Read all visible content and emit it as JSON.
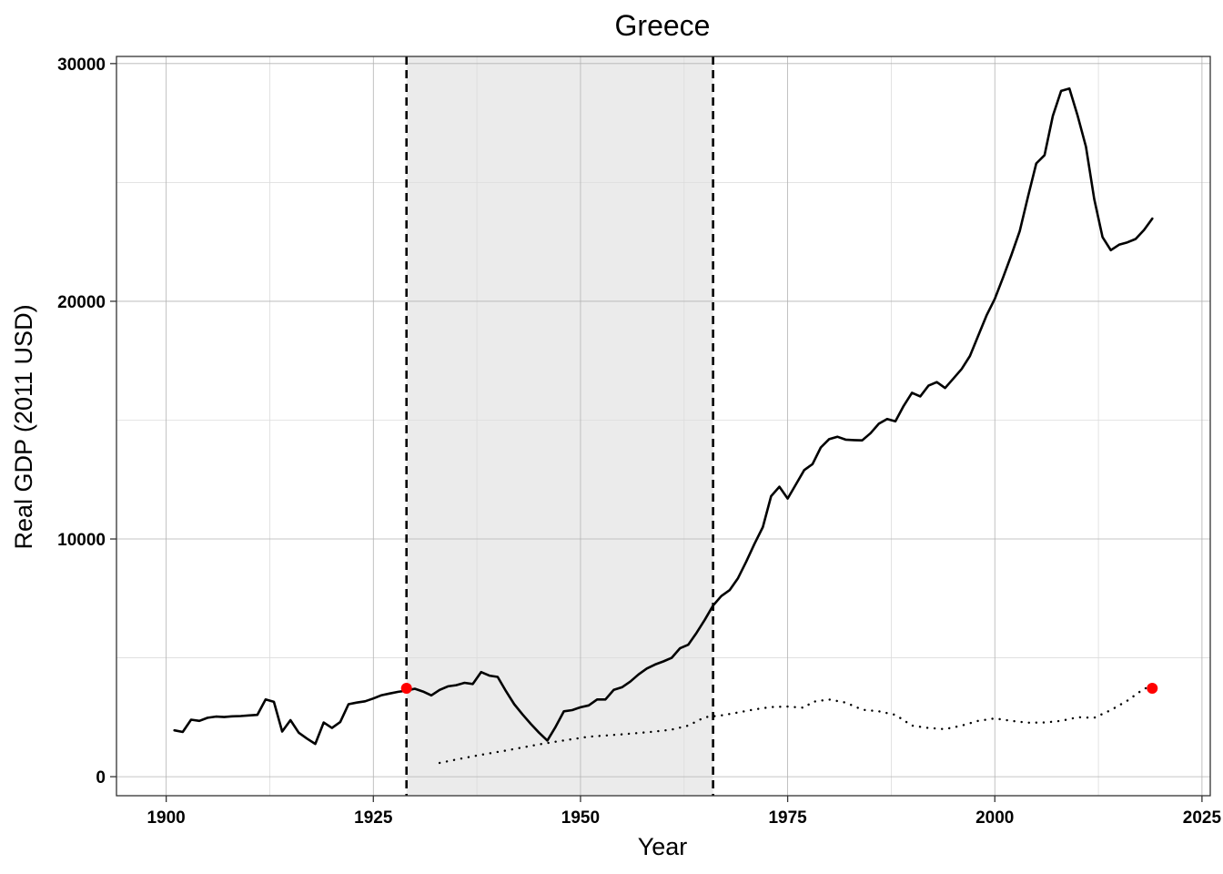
{
  "chart_data": {
    "type": "line",
    "title": "Greece",
    "xlabel": "Year",
    "ylabel": "Real GDP (2011 USD)",
    "xlim": [
      1894,
      2026
    ],
    "ylim": [
      -800,
      30300
    ],
    "x_ticks": [
      1900,
      1925,
      1950,
      1975,
      2000,
      2025
    ],
    "y_ticks": [
      0,
      10000,
      20000,
      30000
    ],
    "grid": true,
    "shaded_region": {
      "x_start": 1929,
      "x_end": 1966,
      "color": "#ebebeb"
    },
    "vertical_lines": [
      {
        "x": 1929,
        "style": "dashed"
      },
      {
        "x": 1966,
        "style": "dashed"
      }
    ],
    "series": [
      {
        "style": "solid",
        "color": "#000000",
        "points": [
          [
            1901,
            1950
          ],
          [
            1902,
            1880
          ],
          [
            1903,
            2400
          ],
          [
            1904,
            2350
          ],
          [
            1905,
            2480
          ],
          [
            1906,
            2530
          ],
          [
            1907,
            2510
          ],
          [
            1908,
            2540
          ],
          [
            1909,
            2550
          ],
          [
            1910,
            2580
          ],
          [
            1911,
            2600
          ],
          [
            1912,
            3250
          ],
          [
            1913,
            3150
          ],
          [
            1914,
            1900
          ],
          [
            1915,
            2380
          ],
          [
            1916,
            1850
          ],
          [
            1917,
            1600
          ],
          [
            1918,
            1380
          ],
          [
            1919,
            2280
          ],
          [
            1920,
            2050
          ],
          [
            1921,
            2300
          ],
          [
            1922,
            3050
          ],
          [
            1923,
            3120
          ],
          [
            1924,
            3170
          ],
          [
            1925,
            3290
          ],
          [
            1926,
            3430
          ],
          [
            1927,
            3500
          ],
          [
            1928,
            3570
          ],
          [
            1929,
            3620
          ],
          [
            1930,
            3700
          ],
          [
            1931,
            3580
          ],
          [
            1932,
            3420
          ],
          [
            1933,
            3650
          ],
          [
            1934,
            3800
          ],
          [
            1935,
            3850
          ],
          [
            1936,
            3950
          ],
          [
            1937,
            3900
          ],
          [
            1938,
            4400
          ],
          [
            1939,
            4250
          ],
          [
            1940,
            4200
          ],
          [
            1941,
            3600
          ],
          [
            1942,
            3050
          ],
          [
            1943,
            2620
          ],
          [
            1944,
            2220
          ],
          [
            1945,
            1850
          ],
          [
            1946,
            1520
          ],
          [
            1947,
            2100
          ],
          [
            1948,
            2750
          ],
          [
            1949,
            2800
          ],
          [
            1950,
            2920
          ],
          [
            1951,
            3000
          ],
          [
            1952,
            3250
          ],
          [
            1953,
            3250
          ],
          [
            1954,
            3650
          ],
          [
            1955,
            3760
          ],
          [
            1956,
            4000
          ],
          [
            1957,
            4300
          ],
          [
            1958,
            4550
          ],
          [
            1959,
            4720
          ],
          [
            1960,
            4850
          ],
          [
            1961,
            5000
          ],
          [
            1962,
            5400
          ],
          [
            1963,
            5550
          ],
          [
            1964,
            6050
          ],
          [
            1965,
            6600
          ],
          [
            1966,
            7200
          ],
          [
            1967,
            7600
          ],
          [
            1968,
            7850
          ],
          [
            1969,
            8350
          ],
          [
            1970,
            9050
          ],
          [
            1971,
            9800
          ],
          [
            1972,
            10500
          ],
          [
            1973,
            11800
          ],
          [
            1974,
            12200
          ],
          [
            1975,
            11700
          ],
          [
            1976,
            12300
          ],
          [
            1977,
            12900
          ],
          [
            1978,
            13150
          ],
          [
            1979,
            13850
          ],
          [
            1980,
            14200
          ],
          [
            1981,
            14300
          ],
          [
            1982,
            14180
          ],
          [
            1983,
            14160
          ],
          [
            1984,
            14150
          ],
          [
            1985,
            14450
          ],
          [
            1986,
            14850
          ],
          [
            1987,
            15050
          ],
          [
            1988,
            14950
          ],
          [
            1989,
            15600
          ],
          [
            1990,
            16150
          ],
          [
            1991,
            16000
          ],
          [
            1992,
            16450
          ],
          [
            1993,
            16600
          ],
          [
            1994,
            16350
          ],
          [
            1995,
            16750
          ],
          [
            1996,
            17150
          ],
          [
            1997,
            17700
          ],
          [
            1998,
            18550
          ],
          [
            1999,
            19400
          ],
          [
            2000,
            20100
          ],
          [
            2001,
            21000
          ],
          [
            2002,
            21950
          ],
          [
            2003,
            22950
          ],
          [
            2004,
            24400
          ],
          [
            2005,
            25800
          ],
          [
            2006,
            26150
          ],
          [
            2007,
            27800
          ],
          [
            2008,
            28850
          ],
          [
            2009,
            28950
          ],
          [
            2010,
            27800
          ],
          [
            2011,
            26500
          ],
          [
            2012,
            24300
          ],
          [
            2013,
            22700
          ],
          [
            2014,
            22150
          ],
          [
            2015,
            22380
          ],
          [
            2016,
            22480
          ],
          [
            2017,
            22620
          ],
          [
            2018,
            23000
          ],
          [
            2019,
            23480
          ]
        ]
      },
      {
        "style": "dotted",
        "color": "#000000",
        "points": [
          [
            1933,
            580
          ],
          [
            1935,
            720
          ],
          [
            1937,
            860
          ],
          [
            1939,
            980
          ],
          [
            1941,
            1100
          ],
          [
            1943,
            1230
          ],
          [
            1945,
            1360
          ],
          [
            1947,
            1470
          ],
          [
            1949,
            1580
          ],
          [
            1951,
            1680
          ],
          [
            1953,
            1730
          ],
          [
            1955,
            1780
          ],
          [
            1957,
            1840
          ],
          [
            1959,
            1900
          ],
          [
            1961,
            1980
          ],
          [
            1963,
            2150
          ],
          [
            1965,
            2500
          ],
          [
            1967,
            2580
          ],
          [
            1969,
            2700
          ],
          [
            1971,
            2830
          ],
          [
            1973,
            2930
          ],
          [
            1975,
            2950
          ],
          [
            1977,
            2900
          ],
          [
            1978,
            3150
          ],
          [
            1980,
            3250
          ],
          [
            1982,
            3120
          ],
          [
            1984,
            2820
          ],
          [
            1986,
            2750
          ],
          [
            1988,
            2600
          ],
          [
            1990,
            2150
          ],
          [
            1992,
            2050
          ],
          [
            1994,
            2000
          ],
          [
            1996,
            2150
          ],
          [
            1998,
            2350
          ],
          [
            2000,
            2450
          ],
          [
            2002,
            2350
          ],
          [
            2004,
            2270
          ],
          [
            2006,
            2280
          ],
          [
            2008,
            2350
          ],
          [
            2010,
            2500
          ],
          [
            2012,
            2480
          ],
          [
            2014,
            2800
          ],
          [
            2016,
            3200
          ],
          [
            2018,
            3700
          ],
          [
            2019,
            3800
          ]
        ]
      }
    ],
    "highlight_points": [
      {
        "x": 1929,
        "y": 3720,
        "color": "#ff0000"
      },
      {
        "x": 2019,
        "y": 3720,
        "color": "#ff0000"
      }
    ]
  }
}
